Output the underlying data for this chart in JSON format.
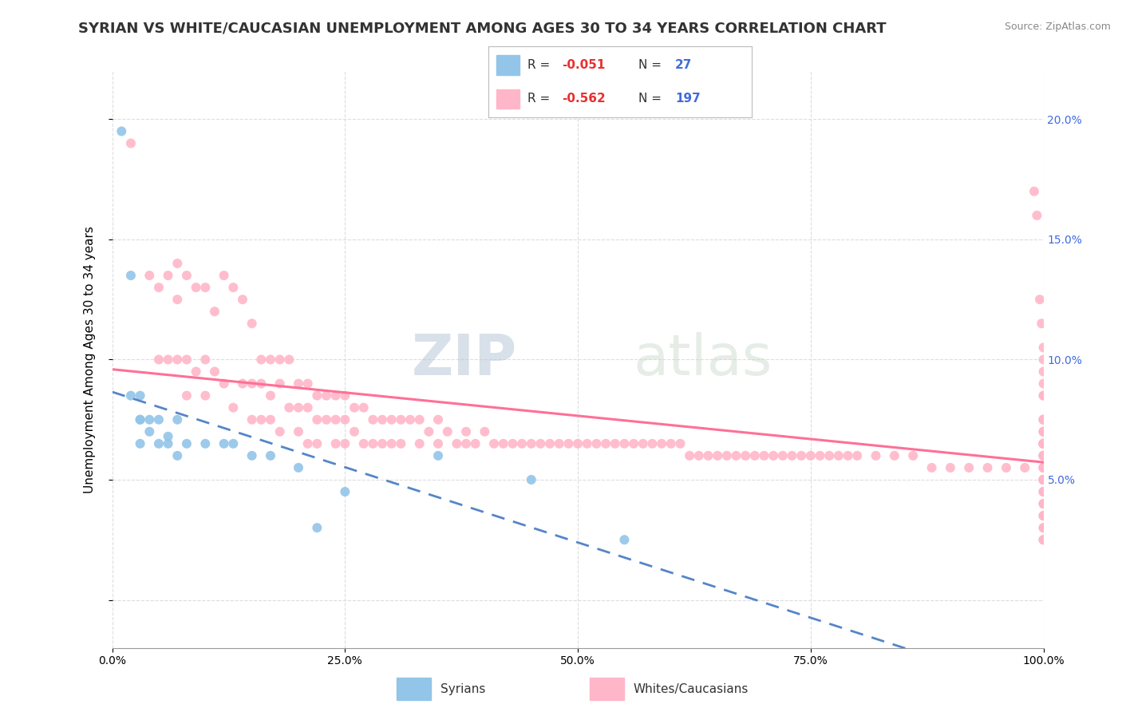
{
  "title": "SYRIAN VS WHITE/CAUCASIAN UNEMPLOYMENT AMONG AGES 30 TO 34 YEARS CORRELATION CHART",
  "source": "Source: ZipAtlas.com",
  "ylabel": "Unemployment Among Ages 30 to 34 years",
  "watermark_zip": "ZIP",
  "watermark_atlas": "atlas",
  "legend": {
    "syrian_R": -0.051,
    "syrian_N": 27,
    "white_R": -0.562,
    "white_N": 197
  },
  "xlim": [
    0,
    1.0
  ],
  "ylim": [
    -0.02,
    0.22
  ],
  "yticks": [
    0.0,
    0.05,
    0.1,
    0.15,
    0.2
  ],
  "xticks": [
    0.0,
    0.25,
    0.5,
    0.75,
    1.0
  ],
  "xtick_labels": [
    "0.0%",
    "25.0%",
    "50.0%",
    "75.0%",
    "100.0%"
  ],
  "syrian_color": "#92C5E8",
  "white_color": "#FFB6C8",
  "syrian_line_color": "#5585C8",
  "white_line_color": "#FF7096",
  "background_color": "#FFFFFF",
  "grid_color": "#DDDDDD",
  "title_fontsize": 13,
  "axis_label_fontsize": 11,
  "tick_fontsize": 10,
  "syrian_scatter_x": [
    0.01,
    0.02,
    0.02,
    0.03,
    0.03,
    0.03,
    0.03,
    0.04,
    0.04,
    0.05,
    0.05,
    0.06,
    0.06,
    0.07,
    0.07,
    0.08,
    0.1,
    0.12,
    0.13,
    0.15,
    0.17,
    0.2,
    0.22,
    0.25,
    0.35,
    0.45,
    0.55
  ],
  "syrian_scatter_y": [
    0.195,
    0.135,
    0.085,
    0.085,
    0.075,
    0.075,
    0.065,
    0.075,
    0.07,
    0.075,
    0.065,
    0.068,
    0.065,
    0.075,
    0.06,
    0.065,
    0.065,
    0.065,
    0.065,
    0.06,
    0.06,
    0.055,
    0.03,
    0.045,
    0.06,
    0.05,
    0.025
  ],
  "white_scatter_x": [
    0.02,
    0.04,
    0.05,
    0.05,
    0.06,
    0.06,
    0.07,
    0.07,
    0.07,
    0.08,
    0.08,
    0.08,
    0.09,
    0.09,
    0.1,
    0.1,
    0.1,
    0.11,
    0.11,
    0.12,
    0.12,
    0.13,
    0.13,
    0.14,
    0.14,
    0.15,
    0.15,
    0.15,
    0.16,
    0.16,
    0.16,
    0.17,
    0.17,
    0.17,
    0.18,
    0.18,
    0.18,
    0.19,
    0.19,
    0.2,
    0.2,
    0.2,
    0.21,
    0.21,
    0.21,
    0.22,
    0.22,
    0.22,
    0.23,
    0.23,
    0.24,
    0.24,
    0.24,
    0.25,
    0.25,
    0.25,
    0.26,
    0.26,
    0.27,
    0.27,
    0.28,
    0.28,
    0.29,
    0.29,
    0.3,
    0.3,
    0.31,
    0.31,
    0.32,
    0.33,
    0.33,
    0.34,
    0.35,
    0.35,
    0.36,
    0.37,
    0.38,
    0.38,
    0.39,
    0.4,
    0.41,
    0.42,
    0.43,
    0.44,
    0.45,
    0.46,
    0.47,
    0.48,
    0.49,
    0.5,
    0.51,
    0.52,
    0.53,
    0.54,
    0.55,
    0.56,
    0.57,
    0.58,
    0.59,
    0.6,
    0.61,
    0.62,
    0.63,
    0.64,
    0.65,
    0.66,
    0.67,
    0.68,
    0.69,
    0.7,
    0.71,
    0.72,
    0.73,
    0.74,
    0.75,
    0.76,
    0.77,
    0.78,
    0.79,
    0.8,
    0.82,
    0.84,
    0.86,
    0.88,
    0.9,
    0.92,
    0.94,
    0.96,
    0.98,
    0.99,
    0.993,
    0.996,
    0.998,
    1.0,
    1.0,
    1.0,
    1.0,
    1.0,
    1.0,
    1.0,
    1.0,
    1.0,
    1.0,
    1.0,
    1.0,
    1.0,
    1.0,
    1.0,
    1.0,
    1.0,
    1.0,
    1.0,
    1.0,
    1.0,
    1.0,
    1.0,
    1.0,
    1.0,
    1.0,
    1.0,
    1.0,
    1.0,
    1.0,
    1.0,
    1.0,
    1.0,
    1.0,
    1.0,
    1.0,
    1.0,
    1.0,
    1.0,
    1.0,
    1.0,
    1.0,
    1.0,
    1.0,
    1.0,
    1.0,
    1.0,
    1.0,
    1.0,
    1.0,
    1.0,
    1.0,
    1.0,
    1.0,
    1.0,
    1.0,
    1.0,
    1.0,
    1.0,
    1.0,
    1.0,
    1.0
  ],
  "white_scatter_y": [
    0.19,
    0.135,
    0.13,
    0.1,
    0.135,
    0.1,
    0.14,
    0.125,
    0.1,
    0.135,
    0.1,
    0.085,
    0.13,
    0.095,
    0.13,
    0.1,
    0.085,
    0.12,
    0.095,
    0.135,
    0.09,
    0.13,
    0.08,
    0.125,
    0.09,
    0.115,
    0.09,
    0.075,
    0.1,
    0.09,
    0.075,
    0.1,
    0.085,
    0.075,
    0.1,
    0.09,
    0.07,
    0.1,
    0.08,
    0.09,
    0.08,
    0.07,
    0.09,
    0.08,
    0.065,
    0.085,
    0.075,
    0.065,
    0.085,
    0.075,
    0.085,
    0.075,
    0.065,
    0.085,
    0.075,
    0.065,
    0.08,
    0.07,
    0.08,
    0.065,
    0.075,
    0.065,
    0.075,
    0.065,
    0.075,
    0.065,
    0.075,
    0.065,
    0.075,
    0.075,
    0.065,
    0.07,
    0.075,
    0.065,
    0.07,
    0.065,
    0.07,
    0.065,
    0.065,
    0.07,
    0.065,
    0.065,
    0.065,
    0.065,
    0.065,
    0.065,
    0.065,
    0.065,
    0.065,
    0.065,
    0.065,
    0.065,
    0.065,
    0.065,
    0.065,
    0.065,
    0.065,
    0.065,
    0.065,
    0.065,
    0.065,
    0.06,
    0.06,
    0.06,
    0.06,
    0.06,
    0.06,
    0.06,
    0.06,
    0.06,
    0.06,
    0.06,
    0.06,
    0.06,
    0.06,
    0.06,
    0.06,
    0.06,
    0.06,
    0.06,
    0.06,
    0.06,
    0.06,
    0.055,
    0.055,
    0.055,
    0.055,
    0.055,
    0.055,
    0.17,
    0.16,
    0.125,
    0.115,
    0.105,
    0.1,
    0.095,
    0.09,
    0.085,
    0.085,
    0.075,
    0.075,
    0.075,
    0.075,
    0.07,
    0.07,
    0.07,
    0.065,
    0.065,
    0.065,
    0.065,
    0.065,
    0.065,
    0.065,
    0.065,
    0.065,
    0.06,
    0.06,
    0.06,
    0.06,
    0.06,
    0.055,
    0.055,
    0.055,
    0.055,
    0.05,
    0.05,
    0.05,
    0.05,
    0.05,
    0.05,
    0.05,
    0.05,
    0.05,
    0.045,
    0.045,
    0.045,
    0.04,
    0.04,
    0.04,
    0.035,
    0.035,
    0.035,
    0.03,
    0.03,
    0.025,
    0.025,
    0.025
  ],
  "right_ytick_labels": [
    "5.0%",
    "10.0%",
    "15.0%",
    "20.0%"
  ]
}
